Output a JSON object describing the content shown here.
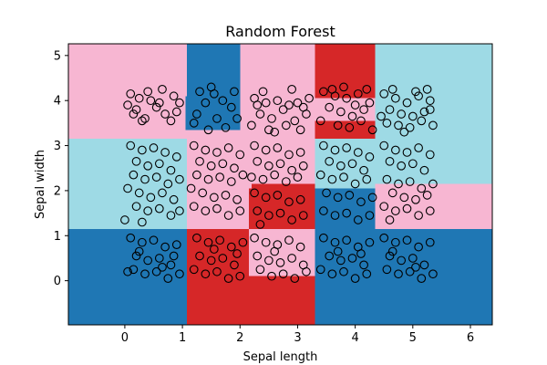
{
  "chart_data": {
    "type": "scatter",
    "title": "Random Forest",
    "xlabel": "Sepal length",
    "ylabel": "Sepal width",
    "xlim": [
      -0.98,
      6.38
    ],
    "ylim": [
      -0.98,
      5.26
    ],
    "xticks": [
      0,
      1,
      2,
      3,
      4,
      5,
      6
    ],
    "yticks": [
      0,
      1,
      2,
      3,
      4,
      5
    ],
    "grid": false,
    "legend": "none",
    "class_colors": {
      "blue": "#1f77b4",
      "red": "#d62728",
      "pink": "#f7b6d2",
      "cyan": "#9edae5"
    },
    "decision_regions": [
      {
        "x0": -0.98,
        "x1": 1.08,
        "y0": 3.15,
        "y1": 5.26,
        "cls": "pink"
      },
      {
        "x0": 1.08,
        "x1": 2.0,
        "y0": 3.15,
        "y1": 4.1,
        "cls": "pink"
      },
      {
        "x0": 1.08,
        "x1": 2.0,
        "y0": 4.1,
        "y1": 5.26,
        "cls": "blue"
      },
      {
        "x0": 1.05,
        "x1": 2.1,
        "y0": 3.35,
        "y1": 4.1,
        "cls": "blue"
      },
      {
        "x0": 2.0,
        "x1": 3.3,
        "y0": 3.15,
        "y1": 5.26,
        "cls": "pink"
      },
      {
        "x0": 3.3,
        "x1": 4.35,
        "y0": 3.15,
        "y1": 5.26,
        "cls": "pink"
      },
      {
        "x0": 3.3,
        "x1": 4.35,
        "y0": 4.05,
        "y1": 5.26,
        "cls": "red"
      },
      {
        "x0": 3.3,
        "x1": 4.35,
        "y0": 3.15,
        "y1": 3.55,
        "cls": "red"
      },
      {
        "x0": 4.35,
        "x1": 6.38,
        "y0": 3.15,
        "y1": 5.26,
        "cls": "cyan"
      },
      {
        "x0": -0.98,
        "x1": 1.08,
        "y0": 1.15,
        "y1": 3.15,
        "cls": "cyan"
      },
      {
        "x0": 1.08,
        "x1": 2.15,
        "y0": 1.15,
        "y1": 3.15,
        "cls": "pink"
      },
      {
        "x0": 2.15,
        "x1": 3.3,
        "y0": 2.05,
        "y1": 3.15,
        "cls": "pink"
      },
      {
        "x0": 2.15,
        "x1": 3.3,
        "y0": 1.15,
        "y1": 2.05,
        "cls": "red"
      },
      {
        "x0": 3.3,
        "x1": 4.35,
        "y0": 2.05,
        "y1": 3.15,
        "cls": "cyan"
      },
      {
        "x0": 3.3,
        "x1": 4.35,
        "y0": 1.15,
        "y1": 2.05,
        "cls": "blue"
      },
      {
        "x0": 4.35,
        "x1": 6.38,
        "y0": 2.15,
        "y1": 3.15,
        "cls": "cyan"
      },
      {
        "x0": 4.35,
        "x1": 6.38,
        "y0": 1.15,
        "y1": 2.15,
        "cls": "pink"
      },
      {
        "x0": -0.98,
        "x1": 1.08,
        "y0": -0.98,
        "y1": 1.15,
        "cls": "blue"
      },
      {
        "x0": 1.08,
        "x1": 2.15,
        "y0": -0.98,
        "y1": 0.1,
        "cls": "red"
      },
      {
        "x0": 1.08,
        "x1": 2.15,
        "y0": 0.1,
        "y1": 1.15,
        "cls": "red"
      },
      {
        "x0": 2.15,
        "x1": 3.3,
        "y0": -0.98,
        "y1": 0.1,
        "cls": "red"
      },
      {
        "x0": 2.15,
        "x1": 3.3,
        "y0": 0.1,
        "y1": 1.15,
        "cls": "pink"
      },
      {
        "x0": 3.3,
        "x1": 6.38,
        "y0": -0.98,
        "y1": 1.15,
        "cls": "blue"
      },
      {
        "x0": 2.2,
        "x1": 3.3,
        "y0": 2.0,
        "y1": 2.15,
        "cls": "red"
      },
      {
        "x0": 3.3,
        "x1": 4.35,
        "y0": 1.05,
        "y1": 1.2,
        "cls": "blue"
      }
    ],
    "points": [
      [
        0.1,
        4.15
      ],
      [
        0.25,
        4.05
      ],
      [
        0.45,
        4.0
      ],
      [
        0.6,
        3.95
      ],
      [
        0.85,
        4.1
      ],
      [
        0.4,
        4.2
      ],
      [
        0.2,
        3.8
      ],
      [
        0.7,
        3.7
      ],
      [
        0.35,
        3.6
      ],
      [
        0.9,
        3.75
      ],
      [
        0.15,
        3.7
      ],
      [
        0.55,
        3.85
      ],
      [
        0.8,
        3.55
      ],
      [
        0.05,
        3.9
      ],
      [
        0.65,
        4.25
      ],
      [
        0.3,
        3.55
      ],
      [
        0.95,
        3.95
      ],
      [
        1.3,
        4.2
      ],
      [
        1.55,
        4.15
      ],
      [
        1.7,
        4.0
      ],
      [
        1.4,
        3.95
      ],
      [
        1.85,
        3.85
      ],
      [
        1.25,
        3.7
      ],
      [
        1.6,
        3.6
      ],
      [
        1.9,
        4.2
      ],
      [
        1.45,
        3.35
      ],
      [
        1.75,
        3.4
      ],
      [
        1.2,
        3.5
      ],
      [
        1.95,
        3.6
      ],
      [
        1.5,
        4.3
      ],
      [
        2.25,
        4.05
      ],
      [
        2.45,
        3.95
      ],
      [
        2.65,
        4.0
      ],
      [
        2.85,
        3.9
      ],
      [
        3.1,
        3.85
      ],
      [
        2.35,
        3.7
      ],
      [
        2.55,
        3.6
      ],
      [
        2.75,
        3.8
      ],
      [
        2.95,
        3.55
      ],
      [
        3.15,
        3.7
      ],
      [
        2.2,
        3.45
      ],
      [
        2.5,
        3.35
      ],
      [
        2.8,
        3.45
      ],
      [
        3.05,
        3.35
      ],
      [
        2.4,
        4.2
      ],
      [
        2.9,
        4.25
      ],
      [
        3.2,
        4.05
      ],
      [
        2.6,
        3.3
      ],
      [
        2.3,
        3.9
      ],
      [
        3.0,
        3.95
      ],
      [
        3.45,
        4.2
      ],
      [
        3.65,
        4.1
      ],
      [
        3.85,
        4.05
      ],
      [
        4.05,
        4.15
      ],
      [
        4.25,
        3.95
      ],
      [
        3.55,
        3.85
      ],
      [
        3.75,
        3.75
      ],
      [
        3.95,
        3.65
      ],
      [
        4.15,
        3.8
      ],
      [
        3.4,
        3.55
      ],
      [
        3.7,
        3.45
      ],
      [
        3.9,
        3.4
      ],
      [
        4.1,
        3.55
      ],
      [
        4.3,
        3.35
      ],
      [
        3.6,
        4.25
      ],
      [
        4.0,
        3.9
      ],
      [
        3.8,
        4.3
      ],
      [
        4.2,
        4.25
      ],
      [
        4.5,
        4.15
      ],
      [
        4.7,
        4.05
      ],
      [
        4.9,
        3.95
      ],
      [
        5.1,
        4.1
      ],
      [
        5.3,
        4.0
      ],
      [
        4.6,
        3.8
      ],
      [
        4.8,
        3.7
      ],
      [
        5.0,
        3.65
      ],
      [
        5.2,
        3.75
      ],
      [
        4.55,
        3.5
      ],
      [
        4.75,
        3.45
      ],
      [
        4.95,
        3.4
      ],
      [
        5.15,
        3.55
      ],
      [
        5.35,
        3.45
      ],
      [
        4.65,
        4.25
      ],
      [
        5.05,
        4.2
      ],
      [
        5.25,
        4.25
      ],
      [
        4.85,
        3.3
      ],
      [
        5.3,
        3.8
      ],
      [
        4.45,
        3.65
      ],
      [
        0.1,
        3.0
      ],
      [
        0.3,
        2.9
      ],
      [
        0.5,
        2.95
      ],
      [
        0.7,
        2.85
      ],
      [
        0.9,
        2.75
      ],
      [
        0.2,
        2.65
      ],
      [
        0.4,
        2.55
      ],
      [
        0.6,
        2.6
      ],
      [
        0.8,
        2.45
      ],
      [
        0.15,
        2.35
      ],
      [
        0.35,
        2.25
      ],
      [
        0.55,
        2.3
      ],
      [
        0.75,
        2.15
      ],
      [
        0.95,
        2.25
      ],
      [
        0.05,
        2.05
      ],
      [
        0.25,
        1.95
      ],
      [
        0.45,
        1.85
      ],
      [
        0.65,
        1.95
      ],
      [
        0.85,
        1.8
      ],
      [
        0.2,
        1.65
      ],
      [
        0.4,
        1.55
      ],
      [
        0.6,
        1.6
      ],
      [
        0.8,
        1.45
      ],
      [
        0.95,
        1.55
      ],
      [
        0.0,
        1.35
      ],
      [
        0.3,
        1.3
      ],
      [
        1.2,
        3.0
      ],
      [
        1.4,
        2.9
      ],
      [
        1.6,
        2.85
      ],
      [
        1.8,
        2.95
      ],
      [
        2.0,
        2.8
      ],
      [
        1.3,
        2.65
      ],
      [
        1.5,
        2.55
      ],
      [
        1.7,
        2.6
      ],
      [
        1.9,
        2.5
      ],
      [
        1.25,
        2.35
      ],
      [
        1.45,
        2.25
      ],
      [
        1.65,
        2.3
      ],
      [
        1.85,
        2.2
      ],
      [
        2.05,
        2.35
      ],
      [
        1.15,
        2.05
      ],
      [
        1.35,
        1.95
      ],
      [
        1.55,
        1.85
      ],
      [
        1.75,
        1.9
      ],
      [
        1.95,
        1.8
      ],
      [
        1.2,
        1.65
      ],
      [
        1.4,
        1.55
      ],
      [
        1.6,
        1.6
      ],
      [
        1.8,
        1.45
      ],
      [
        2.0,
        1.55
      ],
      [
        2.25,
        3.0
      ],
      [
        2.45,
        2.9
      ],
      [
        2.65,
        2.95
      ],
      [
        2.85,
        2.8
      ],
      [
        3.05,
        2.85
      ],
      [
        2.3,
        2.65
      ],
      [
        2.5,
        2.55
      ],
      [
        2.7,
        2.6
      ],
      [
        2.9,
        2.45
      ],
      [
        3.1,
        2.55
      ],
      [
        2.2,
        2.3
      ],
      [
        2.4,
        2.25
      ],
      [
        2.6,
        2.35
      ],
      [
        2.8,
        2.2
      ],
      [
        3.0,
        2.3
      ],
      [
        2.25,
        1.95
      ],
      [
        2.45,
        1.85
      ],
      [
        2.65,
        1.9
      ],
      [
        2.85,
        1.75
      ],
      [
        3.05,
        1.8
      ],
      [
        2.3,
        1.55
      ],
      [
        2.5,
        1.45
      ],
      [
        2.7,
        1.5
      ],
      [
        2.9,
        1.35
      ],
      [
        3.1,
        1.45
      ],
      [
        2.35,
        1.25
      ],
      [
        3.45,
        3.0
      ],
      [
        3.65,
        2.9
      ],
      [
        3.85,
        2.95
      ],
      [
        4.05,
        2.85
      ],
      [
        4.25,
        2.75
      ],
      [
        3.55,
        2.65
      ],
      [
        3.75,
        2.55
      ],
      [
        3.95,
        2.6
      ],
      [
        4.15,
        2.45
      ],
      [
        3.4,
        2.35
      ],
      [
        3.6,
        2.25
      ],
      [
        3.8,
        2.3
      ],
      [
        4.0,
        2.15
      ],
      [
        4.2,
        2.25
      ],
      [
        3.5,
        1.95
      ],
      [
        3.7,
        1.85
      ],
      [
        3.9,
        1.9
      ],
      [
        4.1,
        1.75
      ],
      [
        4.3,
        1.85
      ],
      [
        3.45,
        1.55
      ],
      [
        3.65,
        1.45
      ],
      [
        3.85,
        1.5
      ],
      [
        4.05,
        1.35
      ],
      [
        4.25,
        1.45
      ],
      [
        4.5,
        3.0
      ],
      [
        4.7,
        2.9
      ],
      [
        4.9,
        2.85
      ],
      [
        5.1,
        2.95
      ],
      [
        5.3,
        2.8
      ],
      [
        4.6,
        2.65
      ],
      [
        4.8,
        2.55
      ],
      [
        5.0,
        2.6
      ],
      [
        5.2,
        2.45
      ],
      [
        4.55,
        2.25
      ],
      [
        4.75,
        2.15
      ],
      [
        4.95,
        2.2
      ],
      [
        5.15,
        2.05
      ],
      [
        5.35,
        2.15
      ],
      [
        4.65,
        1.95
      ],
      [
        4.85,
        1.85
      ],
      [
        5.05,
        1.8
      ],
      [
        5.25,
        1.9
      ],
      [
        4.5,
        1.65
      ],
      [
        4.7,
        1.55
      ],
      [
        4.9,
        1.6
      ],
      [
        5.1,
        1.45
      ],
      [
        5.3,
        1.55
      ],
      [
        4.6,
        1.35
      ],
      [
        0.1,
        0.95
      ],
      [
        0.3,
        0.85
      ],
      [
        0.5,
        0.9
      ],
      [
        0.7,
        0.75
      ],
      [
        0.9,
        0.8
      ],
      [
        0.2,
        0.55
      ],
      [
        0.4,
        0.45
      ],
      [
        0.6,
        0.5
      ],
      [
        0.8,
        0.35
      ],
      [
        0.15,
        0.25
      ],
      [
        0.35,
        0.15
      ],
      [
        0.55,
        0.2
      ],
      [
        0.75,
        0.05
      ],
      [
        0.95,
        0.15
      ],
      [
        0.25,
        0.65
      ],
      [
        0.65,
        0.3
      ],
      [
        0.05,
        0.2
      ],
      [
        0.85,
        0.55
      ],
      [
        1.25,
        0.95
      ],
      [
        1.45,
        0.85
      ],
      [
        1.65,
        0.9
      ],
      [
        1.85,
        0.75
      ],
      [
        2.05,
        0.85
      ],
      [
        1.3,
        0.55
      ],
      [
        1.5,
        0.45
      ],
      [
        1.7,
        0.5
      ],
      [
        1.9,
        0.35
      ],
      [
        1.2,
        0.25
      ],
      [
        1.4,
        0.15
      ],
      [
        1.6,
        0.2
      ],
      [
        1.8,
        0.05
      ],
      [
        2.0,
        0.1
      ],
      [
        1.55,
        0.7
      ],
      [
        1.95,
        0.6
      ],
      [
        2.25,
        0.95
      ],
      [
        2.45,
        0.85
      ],
      [
        2.65,
        0.8
      ],
      [
        2.85,
        0.9
      ],
      [
        3.05,
        0.75
      ],
      [
        2.3,
        0.55
      ],
      [
        2.5,
        0.45
      ],
      [
        2.7,
        0.4
      ],
      [
        2.9,
        0.5
      ],
      [
        3.1,
        0.35
      ],
      [
        2.35,
        0.25
      ],
      [
        2.55,
        0.1
      ],
      [
        2.75,
        0.15
      ],
      [
        2.95,
        0.05
      ],
      [
        3.15,
        0.2
      ],
      [
        2.6,
        0.65
      ],
      [
        3.45,
        0.95
      ],
      [
        3.65,
        0.85
      ],
      [
        3.85,
        0.9
      ],
      [
        4.05,
        0.75
      ],
      [
        4.25,
        0.85
      ],
      [
        3.55,
        0.55
      ],
      [
        3.75,
        0.45
      ],
      [
        3.95,
        0.5
      ],
      [
        4.15,
        0.35
      ],
      [
        3.4,
        0.25
      ],
      [
        3.6,
        0.15
      ],
      [
        3.8,
        0.2
      ],
      [
        4.0,
        0.05
      ],
      [
        4.2,
        0.15
      ],
      [
        3.7,
        0.65
      ],
      [
        4.1,
        0.6
      ],
      [
        4.5,
        0.95
      ],
      [
        4.7,
        0.85
      ],
      [
        4.9,
        0.9
      ],
      [
        5.1,
        0.75
      ],
      [
        5.3,
        0.85
      ],
      [
        4.6,
        0.55
      ],
      [
        4.8,
        0.45
      ],
      [
        5.0,
        0.5
      ],
      [
        5.2,
        0.35
      ],
      [
        4.55,
        0.25
      ],
      [
        4.75,
        0.15
      ],
      [
        4.95,
        0.2
      ],
      [
        5.15,
        0.05
      ],
      [
        5.35,
        0.15
      ],
      [
        4.65,
        0.65
      ],
      [
        5.05,
        0.3
      ]
    ]
  }
}
